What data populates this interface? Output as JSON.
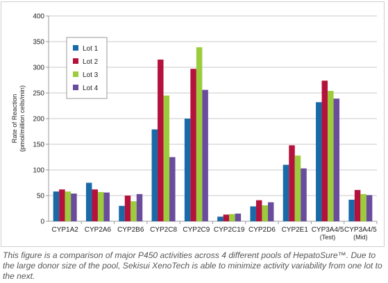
{
  "chart_data": {
    "type": "bar",
    "title": "",
    "xlabel": "",
    "ylabel": [
      "Rate of Reaction",
      "(pmol/million cells/min)"
    ],
    "ylim": [
      0,
      400
    ],
    "yticks": [
      0,
      50,
      100,
      150,
      200,
      250,
      300,
      350,
      400
    ],
    "grid": true,
    "legend_position": "top-left",
    "categories": [
      [
        "CYP1A2"
      ],
      [
        "CYP2A6"
      ],
      [
        "CYP2B6"
      ],
      [
        "CYP2C8"
      ],
      [
        "CYP2C9"
      ],
      [
        "CYP2C19"
      ],
      [
        "CYP2D6"
      ],
      [
        "CYP2E1"
      ],
      [
        "CYP3A4/5",
        "(Test)"
      ],
      [
        "CYP3A4/5",
        "(Mid)"
      ]
    ],
    "series": [
      {
        "name": "Lot 1",
        "color": "#1a6aa8",
        "values": [
          58,
          75,
          30,
          179,
          200,
          9,
          29,
          110,
          232,
          42
        ]
      },
      {
        "name": "Lot 2",
        "color": "#b4113c",
        "values": [
          62,
          62,
          50,
          315,
          297,
          13,
          41,
          148,
          274,
          61
        ]
      },
      {
        "name": "Lot 3",
        "color": "#9ccc3c",
        "values": [
          58,
          57,
          39,
          245,
          339,
          14,
          31,
          128,
          254,
          53
        ]
      },
      {
        "name": "Lot 4",
        "color": "#6a4c9c",
        "values": [
          54,
          56,
          53,
          125,
          256,
          15,
          37,
          103,
          239,
          51
        ]
      }
    ]
  },
  "caption": "This figure is a comparison of major P450 activities across 4 different pools of HepatoSure™. Due to the large donor size of the pool, Sekisui XenoTech is able to minimize activity variability from one lot to the next."
}
